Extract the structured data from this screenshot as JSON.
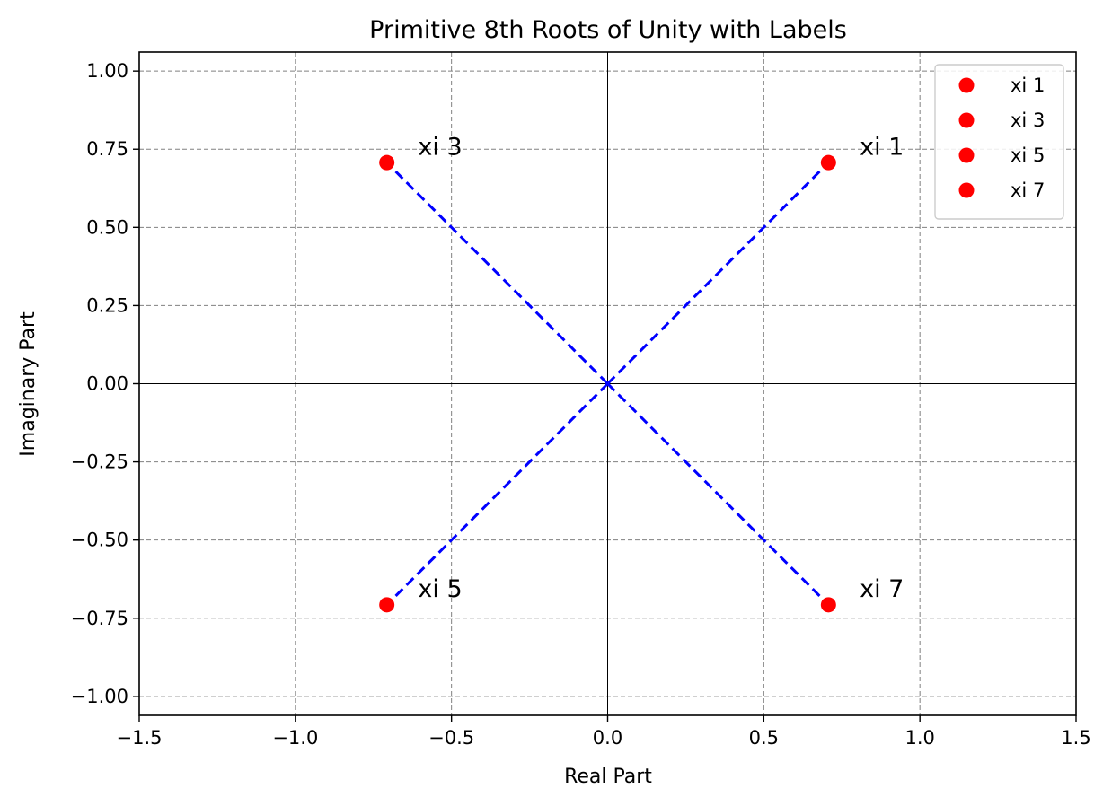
{
  "chart_data": {
    "type": "scatter",
    "title": "Primitive 8th Roots of Unity with Labels",
    "xlabel": "Real Part",
    "ylabel": "Imaginary Part",
    "xlim": [
      -1.5,
      1.5
    ],
    "ylim": [
      -1.0607,
      1.0607
    ],
    "xticks": [
      -1.5,
      -1.0,
      -0.5,
      0.0,
      0.5,
      1.0,
      1.5
    ],
    "xtick_labels": [
      "−1.5",
      "−1.0",
      "−0.5",
      "0.0",
      "0.5",
      "1.0",
      "1.5"
    ],
    "yticks": [
      -1.0,
      -0.75,
      -0.5,
      -0.25,
      0.0,
      0.25,
      0.5,
      0.75,
      1.0
    ],
    "ytick_labels": [
      "−1.00",
      "−0.75",
      "−0.50",
      "−0.25",
      "0.00",
      "0.25",
      "0.50",
      "0.75",
      "1.00"
    ],
    "grid": true,
    "legend_position": "top-right",
    "point_color": "#ff0000",
    "line_color": "#0000ff",
    "series": [
      {
        "name": "xi 1",
        "x": 0.7071,
        "y": 0.7071,
        "label": "xi 1"
      },
      {
        "name": "xi 3",
        "x": -0.7071,
        "y": 0.7071,
        "label": "xi 3"
      },
      {
        "name": "xi 5",
        "x": -0.7071,
        "y": -0.7071,
        "label": "xi 5"
      },
      {
        "name": "xi 7",
        "x": 0.7071,
        "y": -0.7071,
        "label": "xi 7"
      }
    ],
    "connectors": [
      {
        "from": [
          0,
          0
        ],
        "to": [
          0.7071,
          0.7071
        ]
      },
      {
        "from": [
          0,
          0
        ],
        "to": [
          -0.7071,
          0.7071
        ]
      },
      {
        "from": [
          0,
          0
        ],
        "to": [
          -0.7071,
          -0.7071
        ]
      },
      {
        "from": [
          0,
          0
        ],
        "to": [
          0.7071,
          -0.7071
        ]
      }
    ]
  }
}
